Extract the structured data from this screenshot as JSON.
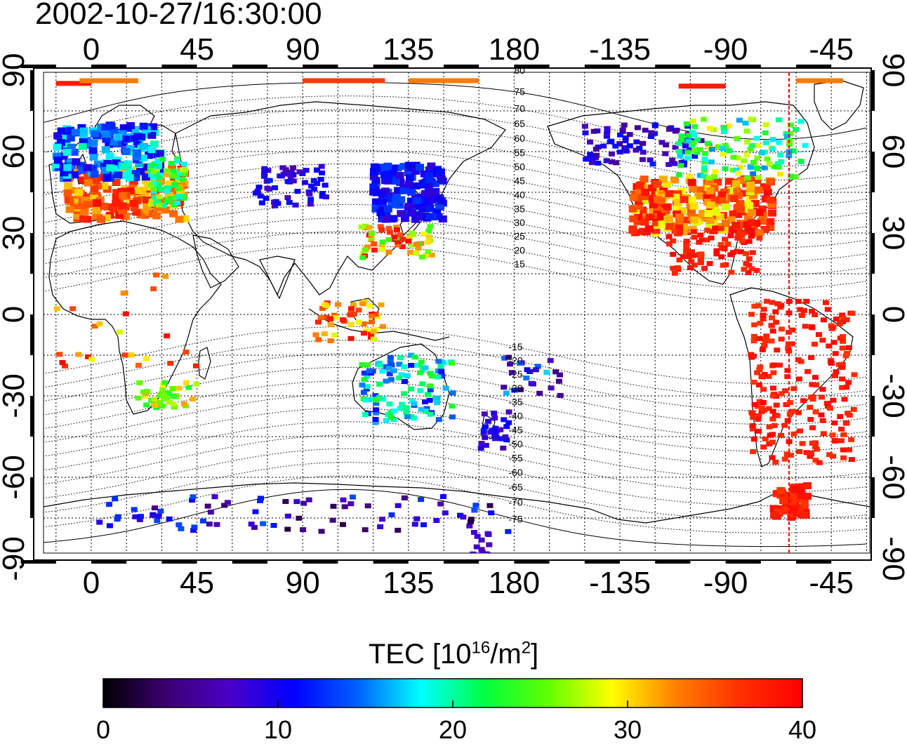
{
  "title": "2002-10-27/16:30:00",
  "map": {
    "top_ticks": [
      "0",
      "45",
      "90",
      "135",
      "180",
      "-135",
      "-90",
      "-45"
    ],
    "bottom_ticks": [
      "0",
      "45",
      "90",
      "135",
      "180",
      "-135",
      "-90",
      "-45"
    ],
    "left_ticks": [
      "90",
      "60",
      "30",
      "0",
      "-30",
      "-60",
      "-90"
    ],
    "right_ticks": [
      "90",
      "60",
      "30",
      "0",
      "-30",
      "-60",
      "-90"
    ],
    "contour_labels_north": [
      "80",
      "75",
      "70",
      "65",
      "60",
      "55",
      "50",
      "45",
      "40",
      "35",
      "30",
      "25",
      "20",
      "15"
    ],
    "contour_labels_south": [
      "-15",
      "-20",
      "-25",
      "-30",
      "-35",
      "-40",
      "-45",
      "-50",
      "-55",
      "-60",
      "-65",
      "-70",
      "-75"
    ],
    "reference_longitude": -63,
    "reference_line_color": "#ff0000"
  },
  "colorbar": {
    "title_main": "TEC  [10",
    "title_exp1": "16",
    "title_mid": "/m",
    "title_exp2": "2",
    "title_end": "]",
    "min": 0,
    "max": 40,
    "tick_labels": [
      "0",
      "10",
      "20",
      "30",
      "40"
    ],
    "colors": [
      "#000000",
      "#3c0070",
      "#4a00c8",
      "#0000ff",
      "#0060ff",
      "#00ffff",
      "#00ff40",
      "#60ff00",
      "#ffff00",
      "#ff8000",
      "#ff3000",
      "#ff0000"
    ]
  }
}
